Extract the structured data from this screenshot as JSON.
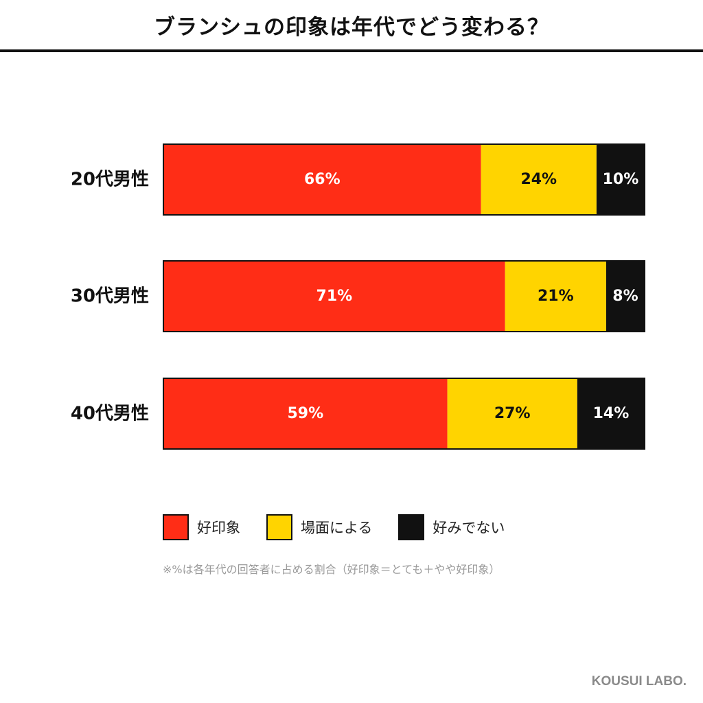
{
  "header": {
    "title": "ブランシュの印象は年代でどう変わる？"
  },
  "chart_data": {
    "type": "bar",
    "orientation": "horizontal",
    "stacked": true,
    "categories": [
      "20代男性",
      "30代男性",
      "40代男性"
    ],
    "series": [
      {
        "name": "好印象",
        "color": "#ff2d16",
        "label_color": "#ffffff",
        "values": [
          66,
          71,
          59
        ]
      },
      {
        "name": "場面による",
        "color": "#ffd400",
        "label_color": "#111111",
        "values": [
          24,
          21,
          27
        ]
      },
      {
        "name": "好みでない",
        "color": "#111111",
        "label_color": "#ffffff",
        "values": [
          10,
          8,
          14
        ]
      }
    ],
    "value_suffix": "%",
    "xlim": [
      0,
      100
    ],
    "legend_position": "bottom",
    "grid": false
  },
  "note": "※%は各年代の回答者に占める割合（好印象＝とても＋やや好印象）",
  "brand": "KOUSUI LABO."
}
